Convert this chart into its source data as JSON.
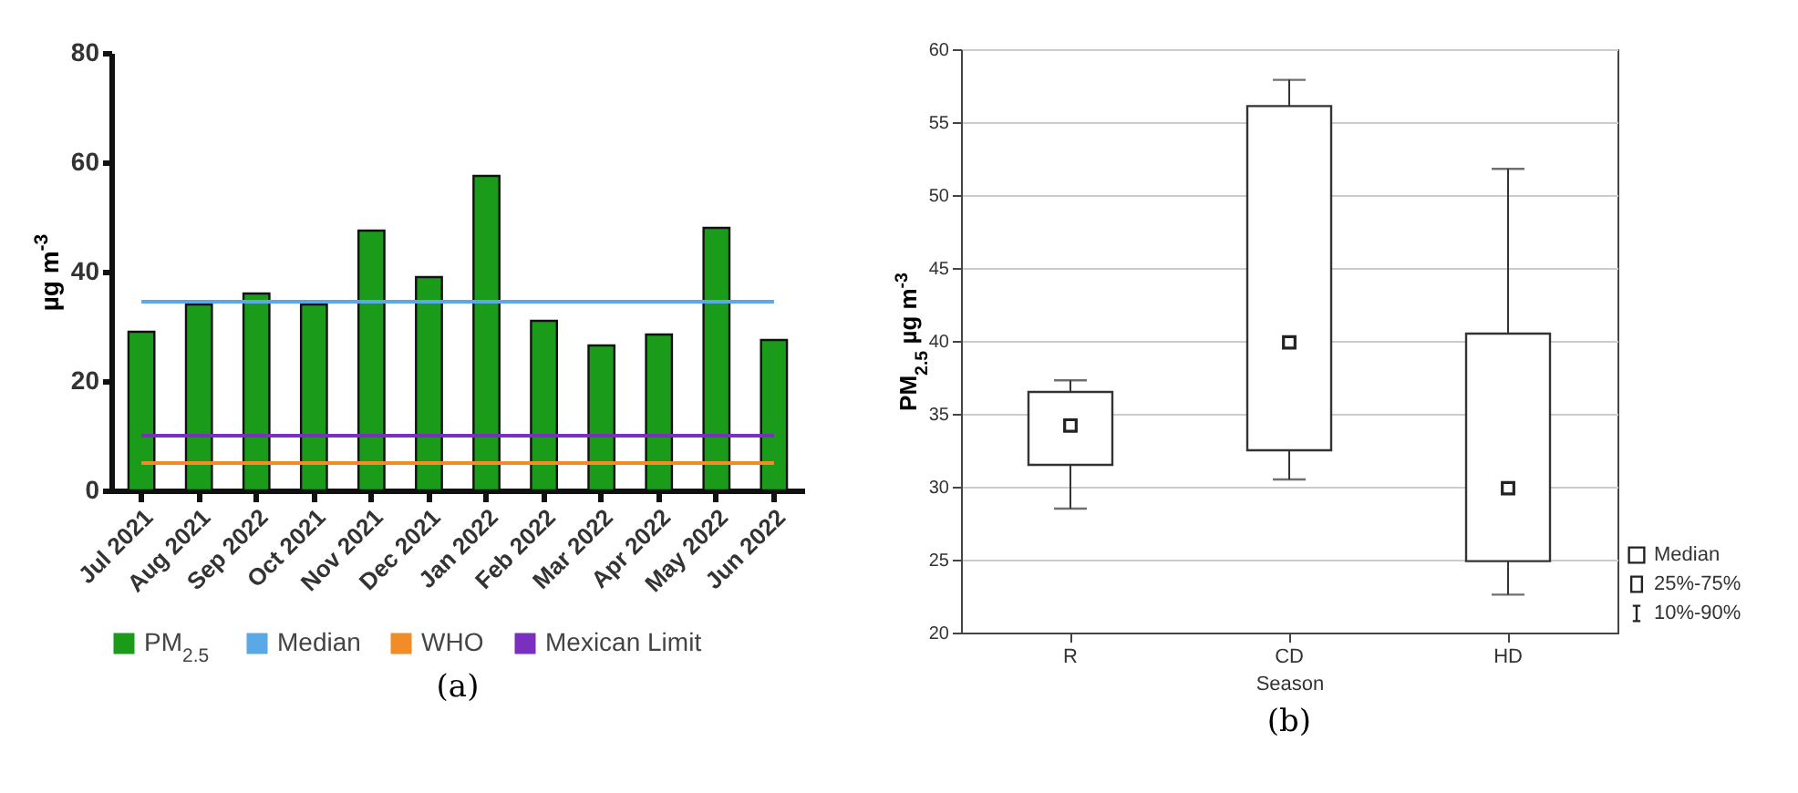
{
  "chart_data": [
    {
      "type": "bar",
      "ylabel": "µg m$^{-3}$",
      "categories": [
        "Jul 2021",
        "Aug 2021",
        "Sep 2022",
        "Oct 2021",
        "Nov 2021",
        "Dec 2021",
        "Jan 2022",
        "Feb 2022",
        "Mar 2022",
        "Apr 2022",
        "May 2022",
        "Jun 2022"
      ],
      "series": [
        {
          "name": "PM$_{2.5}$",
          "type": "bar",
          "color": "#1a9c1a",
          "values": [
            29,
            34,
            36,
            34,
            47.5,
            39,
            57.5,
            31,
            26.5,
            28.5,
            48,
            27.5
          ]
        },
        {
          "name": "Median",
          "type": "line",
          "color": "#5aa8e6",
          "values": [
            34.5,
            34.5,
            34.5,
            34.5,
            34.5,
            34.5,
            34.5,
            34.5,
            34.5,
            34.5,
            34.5,
            34.5
          ]
        },
        {
          "name": "WHO",
          "type": "line",
          "color": "#f28c28",
          "values": [
            5,
            5,
            5,
            5,
            5,
            5,
            5,
            5,
            5,
            5,
            5,
            5
          ]
        },
        {
          "name": "Mexican Limit",
          "type": "line",
          "color": "#7b2fbe",
          "values": [
            10,
            10,
            10,
            10,
            10,
            10,
            10,
            10,
            10,
            10,
            10,
            10
          ]
        }
      ],
      "ylim": [
        0,
        80
      ],
      "yticks": [
        0,
        20,
        40,
        60,
        80
      ],
      "legend": "bottom",
      "marker": "none",
      "annotations": [
        "(a)"
      ]
    },
    {
      "type": "box",
      "xlabel": "Season",
      "ylabel": "PM$_{2.5}$ µg m$^{-3}$",
      "categories": [
        "R",
        "CD",
        "HD"
      ],
      "boxes": [
        {
          "low": 28.5,
          "q1": 31.5,
          "median": 34.2,
          "q3": 36.5,
          "high": 37.3
        },
        {
          "low": 30.5,
          "q1": 32.5,
          "median": 39.9,
          "q3": 56.1,
          "high": 57.9
        },
        {
          "low": 22.6,
          "q1": 24.9,
          "median": 29.9,
          "q3": 40.5,
          "high": 51.8
        }
      ],
      "ylim": [
        20,
        60
      ],
      "yticks": [
        20,
        25,
        30,
        35,
        40,
        45,
        50,
        55,
        60
      ],
      "grid": "y",
      "annotations": [
        "Median",
        "25%-75%",
        "10%-90%",
        "(b)"
      ]
    }
  ]
}
